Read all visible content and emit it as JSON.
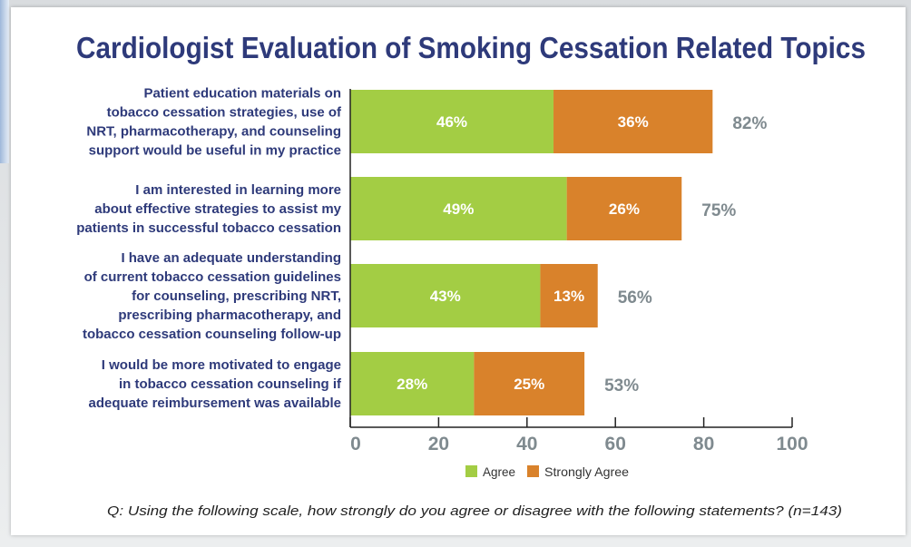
{
  "colors": {
    "agree": "#a3cd44",
    "strongly_agree": "#d9822b",
    "title": "#2e3a7a",
    "total": "#7f8a8f"
  },
  "chart_data": {
    "type": "bar",
    "stacked": true,
    "orientation": "horizontal",
    "title": "Cardiologist Evaluation of Smoking Cessation Related Topics",
    "categories": [
      [
        "Patient education materials on",
        "tobacco cessation strategies, use of",
        "NRT, pharmacotherapy, and counseling",
        "support would be useful in my practice"
      ],
      [
        "I am interested in learning more",
        "about effective strategies to assist my",
        "patients in successful tobacco cessation"
      ],
      [
        "I have an adequate understanding",
        "of current tobacco cessation guidelines",
        "for counseling, prescribing NRT,",
        "prescribing pharmacotherapy, and",
        "tobacco cessation counseling follow-up"
      ],
      [
        "I would be more motivated to engage",
        "in tobacco cessation counseling if",
        "adequate reimbursement was available"
      ]
    ],
    "series": [
      {
        "name": "Agree",
        "values": [
          46,
          49,
          43,
          28
        ],
        "labels": [
          "46%",
          "49%",
          "43%",
          "28%"
        ]
      },
      {
        "name": "Strongly Agree",
        "values": [
          36,
          26,
          13,
          25
        ],
        "labels": [
          "36%",
          "26%",
          "13%",
          "25%"
        ]
      }
    ],
    "totals": [
      "82%",
      "75%",
      "56%",
      "53%"
    ],
    "xlim": [
      0,
      100
    ],
    "xticks": [
      "0",
      "20",
      "40",
      "60",
      "80",
      "100"
    ],
    "legend": "bottom-center",
    "note": "Q: Using the following scale, how strongly do you agree or disagree with the following statements?  (n=143)"
  }
}
